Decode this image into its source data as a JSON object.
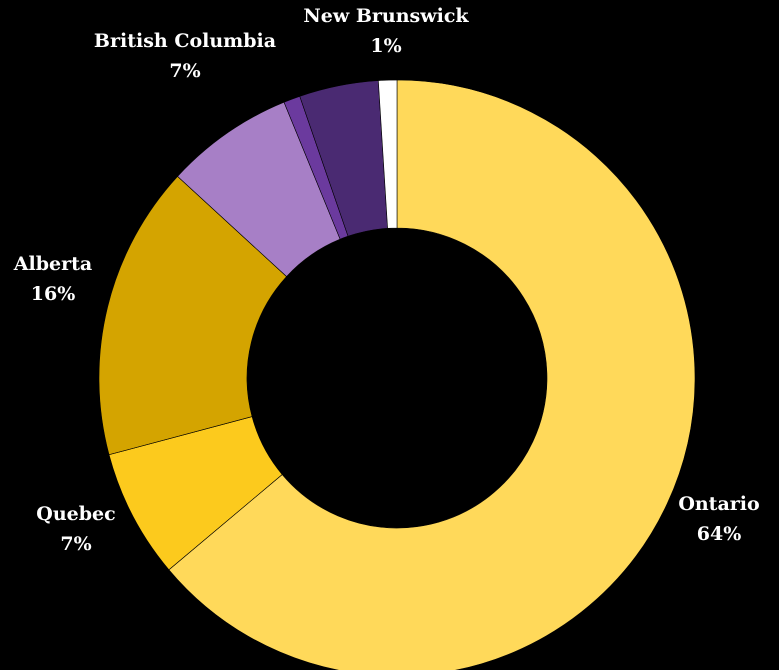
{
  "chart_data": {
    "type": "pie",
    "donut": true,
    "background": "#000000",
    "slices": [
      {
        "label": "Ontario",
        "value": 64,
        "pct_label": "64%",
        "color": "#FFD95A",
        "show_label": true
      },
      {
        "label": "Quebec",
        "value": 7,
        "pct_label": "7%",
        "color": "#FCCA1D",
        "show_label": true
      },
      {
        "label": "Alberta",
        "value": 16,
        "pct_label": "16%",
        "color": "#D4A400",
        "show_label": true
      },
      {
        "label": "British Columbia",
        "value": 7,
        "pct_label": "7%",
        "color": "#A77FC6",
        "show_label": true
      },
      {
        "label": "",
        "value": 0.9,
        "pct_label": "",
        "color": "#6B3A9E",
        "show_label": false
      },
      {
        "label": "",
        "value": 4.3,
        "pct_label": "",
        "color": "#4A2A72",
        "show_label": false
      },
      {
        "label": "New Brunswick",
        "value": 1,
        "pct_label": "1%",
        "color": "#FFFFFF",
        "show_label": true
      }
    ]
  }
}
